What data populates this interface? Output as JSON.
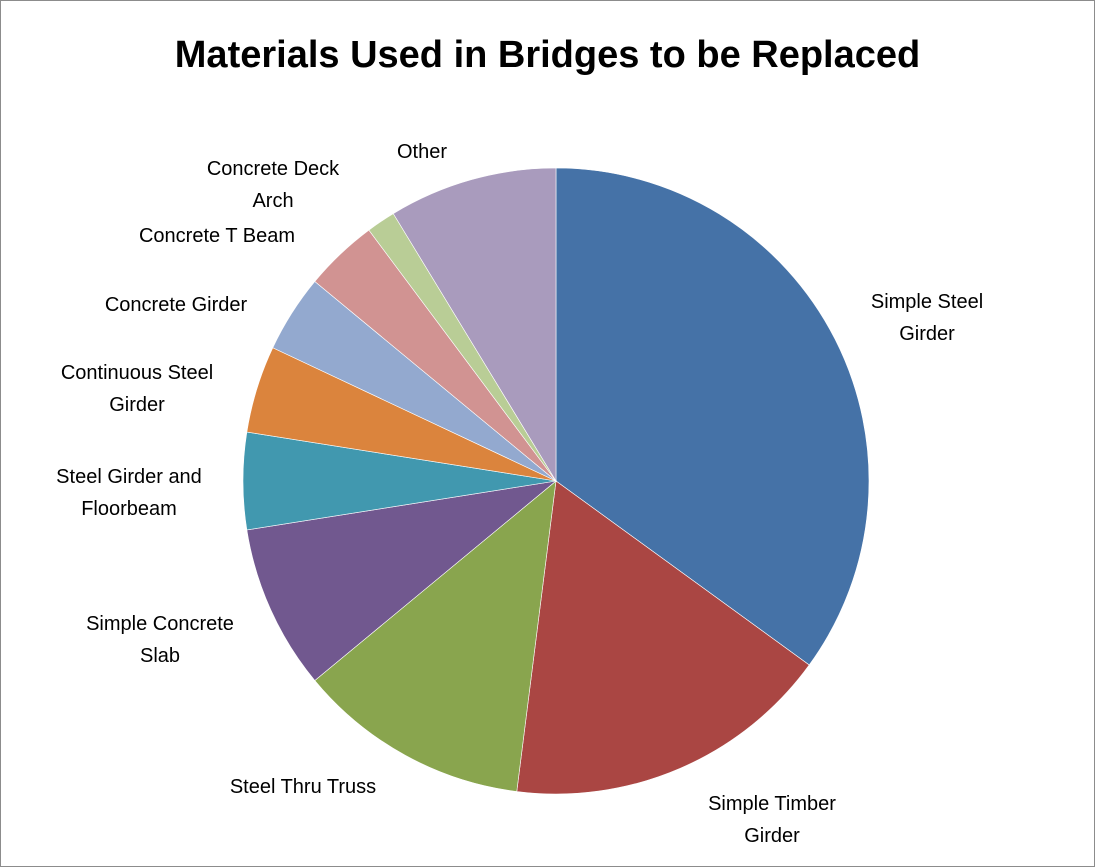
{
  "chart_data": {
    "type": "pie",
    "title": "Materials Used in Bridges to be Replaced",
    "start_angle_deg": 0,
    "direction": "clockwise",
    "slices": [
      {
        "name": "Simple Steel Girder",
        "label_lines": [
          "Simple Steel",
          "Girder"
        ],
        "value": 35.0,
        "color": "#4572a7"
      },
      {
        "name": "Simple Timber Girder",
        "label_lines": [
          "Simple Timber",
          "Girder"
        ],
        "value": 17.0,
        "color": "#aa4643"
      },
      {
        "name": "Steel Thru Truss",
        "label_lines": [
          "Steel Thru Truss"
        ],
        "value": 12.0,
        "color": "#89a54e"
      },
      {
        "name": "Simple Concrete Slab",
        "label_lines": [
          "Simple Concrete",
          "Slab"
        ],
        "value": 8.5,
        "color": "#71588f"
      },
      {
        "name": "Steel Girder and Floorbeam",
        "label_lines": [
          "Steel Girder and",
          "Floorbeam"
        ],
        "value": 5.0,
        "color": "#4198af"
      },
      {
        "name": "Continuous Steel Girder",
        "label_lines": [
          "Continuous Steel",
          "Girder"
        ],
        "value": 4.5,
        "color": "#db843d"
      },
      {
        "name": "Concrete Girder",
        "label_lines": [
          "Concrete Girder"
        ],
        "value": 4.0,
        "color": "#93a9cf"
      },
      {
        "name": "Concrete T Beam",
        "label_lines": [
          "Concrete T Beam"
        ],
        "value": 3.8,
        "color": "#d19392"
      },
      {
        "name": "Concrete Deck Arch",
        "label_lines": [
          "Concrete Deck",
          "Arch"
        ],
        "value": 1.5,
        "color": "#b9cd96"
      },
      {
        "name": "Other",
        "label_lines": [
          "Other"
        ],
        "value": 8.7,
        "color": "#a99bbd"
      }
    ]
  }
}
